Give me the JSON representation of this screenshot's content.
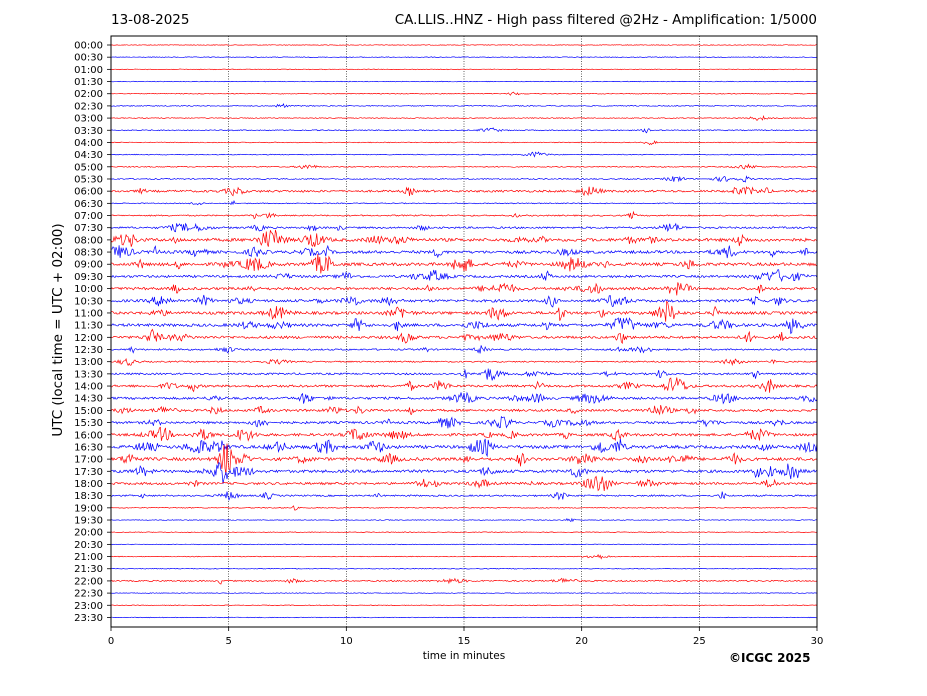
{
  "header": {
    "date": "13-08-2025",
    "title": "CA.LLIS..HNZ - High pass filtered @2Hz - Amplification: 1/5000"
  },
  "footer": {
    "copyright": "©ICGC 2025"
  },
  "chart_data": {
    "type": "line",
    "title": "CA.LLIS..HNZ - High pass filtered @2Hz - Amplification: 1/5000",
    "xlabel": "time in minutes",
    "ylabel": "UTC (local time = UTC + 02:00)",
    "xlim": [
      0,
      30
    ],
    "xticks": [
      0,
      5,
      10,
      15,
      20,
      25,
      30
    ],
    "grid": "vertical dotted lines at 5-minute intervals",
    "colors": {
      "even_rows": "#ff0000",
      "odd_rows": "#0000ff"
    },
    "rows": [
      "00:00",
      "00:30",
      "01:00",
      "01:30",
      "02:00",
      "02:30",
      "03:00",
      "03:30",
      "04:00",
      "04:30",
      "05:00",
      "05:30",
      "06:00",
      "06:30",
      "07:00",
      "07:30",
      "08:00",
      "08:30",
      "09:00",
      "09:30",
      "10:00",
      "10:30",
      "11:00",
      "11:30",
      "12:00",
      "12:30",
      "13:00",
      "13:30",
      "14:00",
      "14:30",
      "15:00",
      "15:30",
      "16:00",
      "16:30",
      "17:00",
      "17:30",
      "18:00",
      "18:30",
      "19:00",
      "19:30",
      "20:00",
      "20:30",
      "21:00",
      "21:30",
      "22:00",
      "22:30",
      "23:00",
      "23:30"
    ],
    "activity_level": [
      0.02,
      0.03,
      0.02,
      0.02,
      0.05,
      0.1,
      0.1,
      0.15,
      0.08,
      0.1,
      0.15,
      0.2,
      0.6,
      0.15,
      0.3,
      0.5,
      1.0,
      0.9,
      1.0,
      0.7,
      0.8,
      0.8,
      0.9,
      0.9,
      0.8,
      0.4,
      0.3,
      0.5,
      0.7,
      0.7,
      0.7,
      0.7,
      0.8,
      1.0,
      1.0,
      0.9,
      0.7,
      0.4,
      0.1,
      0.05,
      0.03,
      0.02,
      0.05,
      0.02,
      0.3,
      0.02,
      0.02,
      0.02
    ]
  }
}
